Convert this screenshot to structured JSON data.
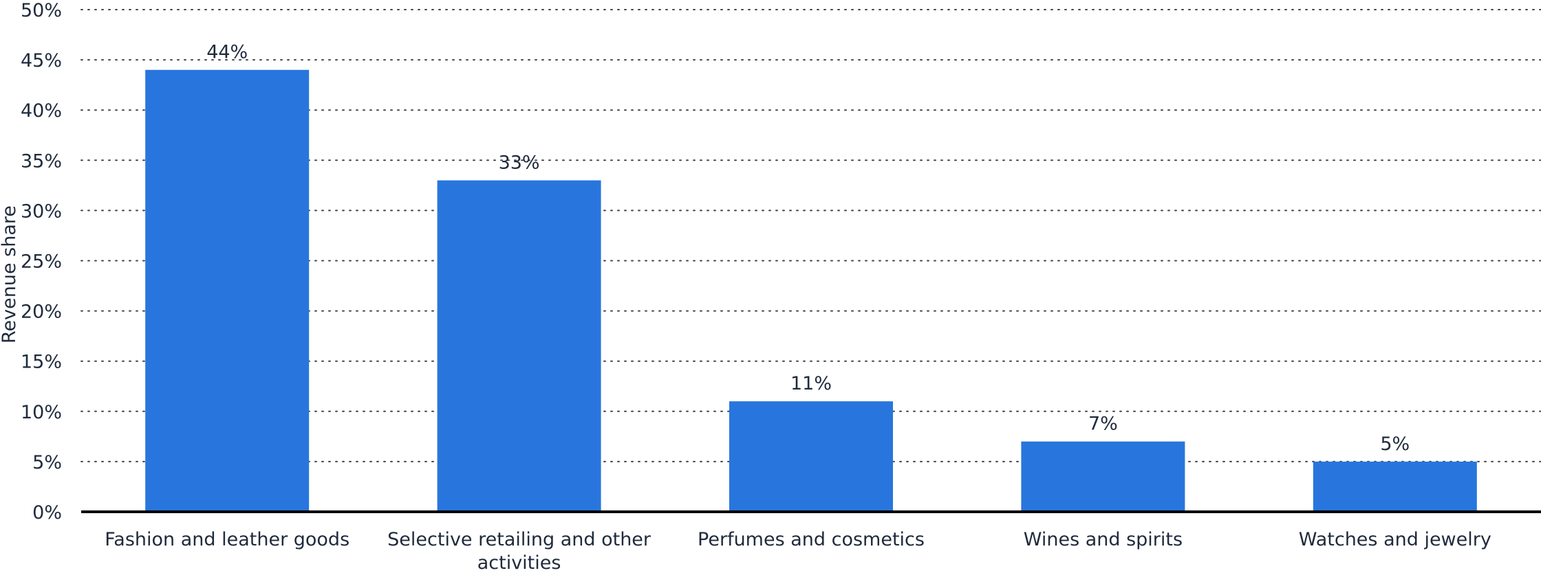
{
  "chart_data": {
    "type": "bar",
    "title": "",
    "xlabel": "",
    "ylabel": "Revenue share",
    "categories": [
      "Fashion and leather goods",
      "Selective retailing and other activities",
      "Perfumes and cosmetics",
      "Wines and spirits",
      "Watches and jewelry"
    ],
    "category_lines": [
      [
        "Fashion and leather goods"
      ],
      [
        "Selective retailing and other",
        "activities"
      ],
      [
        "Perfumes and cosmetics"
      ],
      [
        "Wines and spirits"
      ],
      [
        "Watches and jewelry"
      ]
    ],
    "values": [
      44,
      33,
      11,
      7,
      5
    ],
    "data_labels": [
      "44%",
      "33%",
      "11%",
      "7%",
      "5%"
    ],
    "ylim": [
      0,
      50
    ],
    "yticks": [
      0,
      5,
      10,
      15,
      20,
      25,
      30,
      35,
      40,
      45,
      50
    ],
    "ytick_labels": [
      "0%",
      "5%",
      "10%",
      "15%",
      "20%",
      "25%",
      "30%",
      "35%",
      "40%",
      "45%",
      "50%"
    ],
    "grid": "horizontal-dotted",
    "legend": "none",
    "colors": {
      "bar": "#2876DD",
      "text": "#1F2A3C",
      "grid": "#444444",
      "axis": "#000000"
    }
  }
}
